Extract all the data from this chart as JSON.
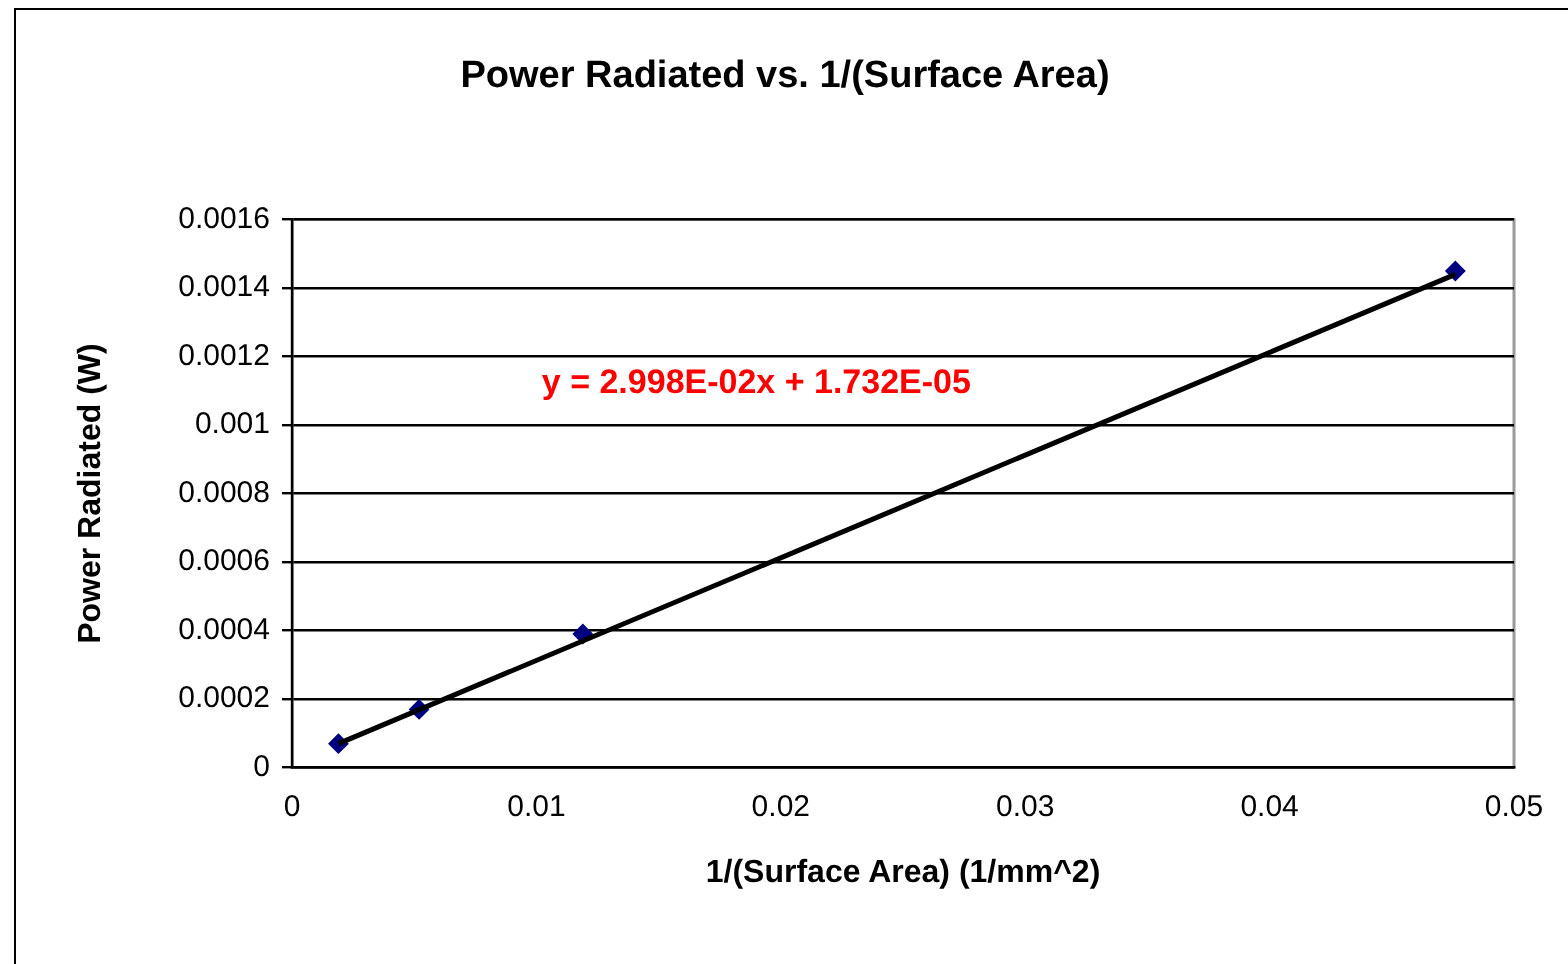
{
  "chart_data": {
    "type": "scatter",
    "title": "Power Radiated vs. 1/(Surface Area)",
    "xlabel": "1/(Surface Area) (1/mm^2)",
    "ylabel": "Power Radiated (W)",
    "series": [
      {
        "color": "#000080",
        "x": [
          0.0019,
          0.0052,
          0.0119,
          0.0476
        ],
        "values": [
          7e-05,
          0.00017,
          0.00039,
          0.00145
        ],
        "marker": "diamond"
      },
      {
        "type": "line",
        "color": "#000000",
        "x": [
          0.0019,
          0.0476
        ],
        "values": [
          7e-05,
          0.00144
        ],
        "marker": "none",
        "line_style": "solid"
      }
    ],
    "xlim": [
      0,
      0.05
    ],
    "xticks": [
      0,
      0.01,
      0.02,
      0.03,
      0.04,
      0.05
    ],
    "ylim": [
      0,
      0.0016
    ],
    "yticks": [
      0,
      0.0002,
      0.0004,
      0.0006,
      0.0008,
      0.001,
      0.0012,
      0.0014,
      0.0016
    ],
    "grid": "y",
    "legend": false,
    "annotations": [
      "y = 2.998E-02x + 1.732E-05"
    ]
  }
}
